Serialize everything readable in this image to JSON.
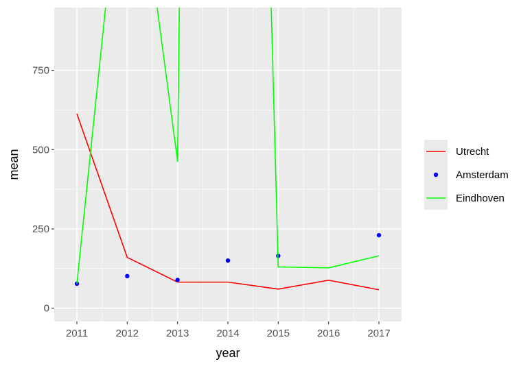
{
  "chart_data": {
    "type": "line",
    "title": "",
    "xlabel": "year",
    "ylabel": "mean",
    "x": [
      2011,
      2012,
      2013,
      2014,
      2015,
      2016,
      2017
    ],
    "x_ticks": [
      "2011",
      "2012",
      "2013",
      "2014",
      "2015",
      "2016",
      "2017"
    ],
    "y_ticks": [
      "0",
      "250",
      "500",
      "750"
    ],
    "y_tick_values": [
      0,
      250,
      500,
      750
    ],
    "xlim": [
      2010.55,
      2017.45
    ],
    "ylim": [
      -42,
      948
    ],
    "grid": true,
    "legend_position": "right",
    "series": [
      {
        "name": "Utrecht",
        "style": "line",
        "color": "#FF0000",
        "points": [
          [
            2011,
            613
          ],
          [
            2012,
            160
          ],
          [
            2013,
            82
          ],
          [
            2014,
            82
          ],
          [
            2015,
            60
          ],
          [
            2016,
            88
          ],
          [
            2017,
            58
          ]
        ]
      },
      {
        "name": "Amsterdam",
        "style": "point",
        "color": "#0000FF",
        "points": [
          [
            2011,
            77
          ],
          [
            2012,
            101
          ],
          [
            2013,
            89
          ],
          [
            2014,
            150
          ],
          [
            2015,
            165
          ],
          [
            2017,
            230
          ]
        ]
      },
      {
        "name": "Eindhoven",
        "style": "line",
        "color": "#00FF00",
        "points": [
          [
            2011,
            77
          ],
          [
            2011.8,
            1300
          ],
          [
            2012.3,
            1300
          ],
          [
            2013,
            463
          ],
          [
            2013.06,
            1300
          ],
          [
            2014.8,
            1300
          ],
          [
            2015,
            130
          ],
          [
            2016,
            127
          ],
          [
            2017,
            165
          ]
        ]
      }
    ]
  }
}
